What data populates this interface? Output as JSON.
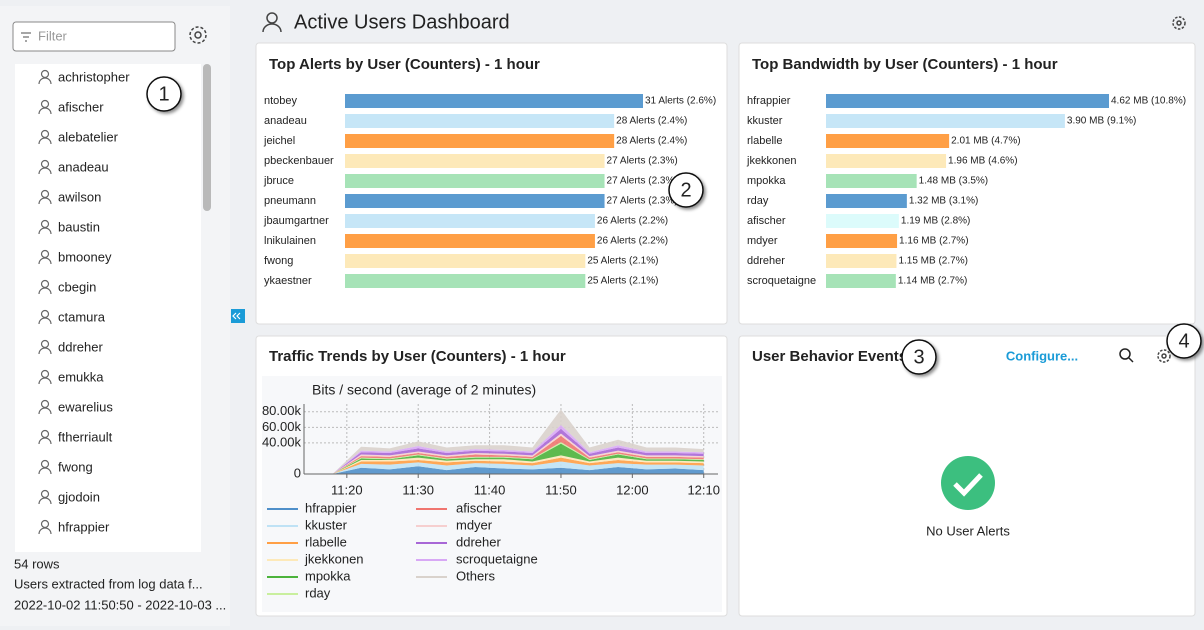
{
  "sidebar": {
    "filter_placeholder": "Filter",
    "users": [
      "achristopher",
      "afischer",
      "alebatelier",
      "anadeau",
      "awilson",
      "baustin",
      "bmooney",
      "cbegin",
      "ctamura",
      "ddreher",
      "emukka",
      "ewarelius",
      "ftherriault",
      "fwong",
      "gjodoin",
      "hfrappier"
    ],
    "row_count": "54 rows",
    "description": "Users extracted from log data f...",
    "time_range": "2022-10-02 11:50:50 - 2022-10-03 ..."
  },
  "header": {
    "title": "Active Users Dashboard"
  },
  "chart_data": [
    {
      "type": "bar",
      "horizontal": true,
      "title": "Top Alerts by User (Counters) - 1 hour",
      "categories": [
        "ntobey",
        "anadeau",
        "jeichel",
        "pbeckenbauer",
        "jbruce",
        "pneumann",
        "jbaumgartner",
        "lnikulainen",
        "fwong",
        "ykaestner"
      ],
      "values": [
        31,
        28,
        28,
        27,
        27,
        27,
        26,
        26,
        25,
        25
      ],
      "value_labels": [
        "31 Alerts (2.6%)",
        "28 Alerts (2.4%)",
        "28 Alerts (2.4%)",
        "27 Alerts (2.3%)",
        "27 Alerts (2.3%)",
        "27 Alerts (2.3%)",
        "26 Alerts (2.2%)",
        "26 Alerts (2.2%)",
        "25 Alerts (2.1%)",
        "25 Alerts (2.1%)"
      ],
      "colors": [
        "#5b9bd0",
        "#c6e6f7",
        "#ff9f45",
        "#fde9b9",
        "#a6e3b7",
        "#5b9bd0",
        "#c6e6f7",
        "#ff9f45",
        "#fde9b9",
        "#a6e3b7"
      ]
    },
    {
      "type": "bar",
      "horizontal": true,
      "title": "Top Bandwidth by User (Counters) - 1 hour",
      "categories": [
        "hfrappier",
        "kkuster",
        "rlabelle",
        "jkekkonen",
        "mpokka",
        "rday",
        "afischer",
        "mdyer",
        "ddreher",
        "scroquetaigne"
      ],
      "values": [
        4.62,
        3.9,
        2.01,
        1.96,
        1.48,
        1.32,
        1.19,
        1.16,
        1.15,
        1.14
      ],
      "value_labels": [
        "4.62 MB (10.8%)",
        "3.90 MB (9.1%)",
        "2.01 MB (4.7%)",
        "1.96 MB (4.6%)",
        "1.48 MB (3.5%)",
        "1.32 MB (3.1%)",
        "1.19 MB (2.8%)",
        "1.16 MB (2.7%)",
        "1.15 MB (2.7%)",
        "1.14 MB (2.7%)"
      ],
      "colors": [
        "#5b9bd0",
        "#c6e6f7",
        "#ff9f45",
        "#fde9b9",
        "#a6e3b7",
        "#5b9bd0",
        "#dcfbfb",
        "#ff9f45",
        "#fde9b9",
        "#a6e3b7"
      ]
    },
    {
      "type": "area",
      "stacked": true,
      "title": "Traffic Trends by User (Counters) - 1 hour",
      "subtitle": "Bits / second (average of 2 minutes)",
      "x": [
        "11:14",
        "11:18",
        "11:22",
        "11:26",
        "11:30",
        "11:34",
        "11:38",
        "11:42",
        "11:46",
        "11:50",
        "11:54",
        "11:58",
        "12:02",
        "12:06",
        "12:10"
      ],
      "xlim": [
        "11:14",
        "12:12"
      ],
      "xticks": [
        "11:20",
        "11:30",
        "11:40",
        "11:50",
        "12:00",
        "12:10"
      ],
      "ylim": [
        0,
        90000
      ],
      "yticks": [
        0,
        {
          "value": 40000,
          "label": "40.00k"
        },
        {
          "value": 60000,
          "label": "60.00k"
        },
        {
          "value": 80000,
          "label": "80.00k"
        }
      ],
      "grid": true,
      "series": [
        {
          "name": "hfrappier",
          "color": "#4f8fc9",
          "values": [
            0,
            0,
            8000,
            6000,
            10000,
            5000,
            9000,
            7000,
            6000,
            8000,
            5000,
            9000,
            6000,
            7000,
            5000
          ]
        },
        {
          "name": "kkuster",
          "color": "#bfe2f5",
          "values": [
            0,
            0,
            5000,
            6000,
            5000,
            6000,
            5000,
            6000,
            5000,
            8000,
            6000,
            5000,
            6000,
            5000,
            6000
          ]
        },
        {
          "name": "rlabelle",
          "color": "#ff9f45",
          "values": [
            0,
            0,
            3000,
            4000,
            3000,
            4000,
            3000,
            3000,
            3000,
            5000,
            3000,
            4000,
            3000,
            3000,
            3000
          ]
        },
        {
          "name": "jkekkonen",
          "color": "#fde9b9",
          "values": [
            0,
            0,
            2000,
            2000,
            3000,
            2000,
            2000,
            3000,
            2000,
            3000,
            2000,
            3000,
            2000,
            2000,
            2000
          ]
        },
        {
          "name": "mpokka",
          "color": "#4cb33c",
          "values": [
            0,
            0,
            2000,
            1000,
            3000,
            2000,
            2000,
            2000,
            3000,
            15000,
            2000,
            4000,
            2000,
            2000,
            2000
          ]
        },
        {
          "name": "rday",
          "color": "#c9ef9e",
          "values": [
            0,
            0,
            1000,
            1000,
            1000,
            1000,
            1000,
            1000,
            1000,
            2000,
            1000,
            1000,
            1000,
            1000,
            1000
          ]
        },
        {
          "name": "afischer",
          "color": "#f0756f",
          "values": [
            0,
            0,
            2000,
            2000,
            2000,
            2000,
            3000,
            2000,
            2000,
            8000,
            2000,
            2000,
            2000,
            2000,
            2000
          ]
        },
        {
          "name": "mdyer",
          "color": "#f6cfcf",
          "values": [
            0,
            0,
            2000,
            2000,
            2000,
            2000,
            2000,
            2000,
            2000,
            3000,
            2000,
            2000,
            2000,
            2000,
            2000
          ]
        },
        {
          "name": "ddreher",
          "color": "#a867d6",
          "values": [
            0,
            0,
            3000,
            3000,
            4000,
            3000,
            3000,
            3000,
            3000,
            6000,
            3000,
            4000,
            3000,
            3000,
            3000
          ]
        },
        {
          "name": "scroquetaigne",
          "color": "#d8a8f5",
          "values": [
            0,
            0,
            2000,
            2000,
            3000,
            2000,
            2000,
            2000,
            2000,
            5000,
            2000,
            3000,
            2000,
            2000,
            2000
          ]
        },
        {
          "name": "Others",
          "color": "#d9d2cc",
          "values": [
            0,
            0,
            5000,
            4000,
            6000,
            5000,
            5000,
            6000,
            5000,
            20000,
            6000,
            7000,
            5000,
            5000,
            4000
          ]
        }
      ]
    }
  ],
  "behavior_panel": {
    "title": "User Behavior Events",
    "action": "Configure...",
    "empty_message": "No User Alerts"
  },
  "callouts": [
    "1",
    "2",
    "3",
    "4"
  ]
}
